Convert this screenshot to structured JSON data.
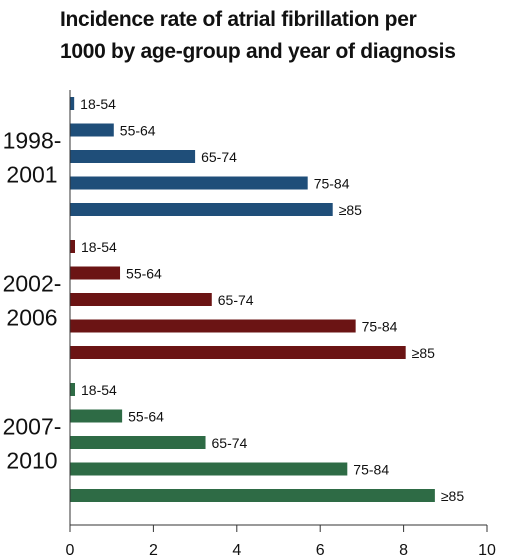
{
  "chart_data": {
    "type": "bar",
    "orientation": "horizontal",
    "title_lines": [
      "Incidence rate of atrial fibrillation per",
      "1000 by age-group and year of diagnosis"
    ],
    "xlabel": "",
    "ylabel": "",
    "xlim": [
      0,
      10
    ],
    "x_ticks": [
      0,
      2,
      4,
      6,
      8,
      10
    ],
    "grid": false,
    "legend": "none",
    "groups": [
      {
        "label_lines": [
          "1998-",
          "2001"
        ],
        "color": "#1f4e79",
        "bars": [
          {
            "category": "18-54",
            "value": 0.1
          },
          {
            "category": "55-64",
            "value": 1.05
          },
          {
            "category": "65-74",
            "value": 3.0
          },
          {
            "category": "75-84",
            "value": 5.7
          },
          {
            "category": "≥85",
            "value": 6.3
          }
        ]
      },
      {
        "label_lines": [
          "2002-",
          "2006"
        ],
        "color": "#6b1414",
        "bars": [
          {
            "category": "18-54",
            "value": 0.12
          },
          {
            "category": "55-64",
            "value": 1.2
          },
          {
            "category": "65-74",
            "value": 3.4
          },
          {
            "category": "75-84",
            "value": 6.85
          },
          {
            "category": "≥85",
            "value": 8.05
          }
        ]
      },
      {
        "label_lines": [
          "2007-",
          "2010"
        ],
        "color": "#2e6b45",
        "bars": [
          {
            "category": "18-54",
            "value": 0.12
          },
          {
            "category": "55-64",
            "value": 1.25
          },
          {
            "category": "65-74",
            "value": 3.25
          },
          {
            "category": "75-84",
            "value": 6.65
          },
          {
            "category": "≥85",
            "value": 8.75
          }
        ]
      }
    ]
  }
}
